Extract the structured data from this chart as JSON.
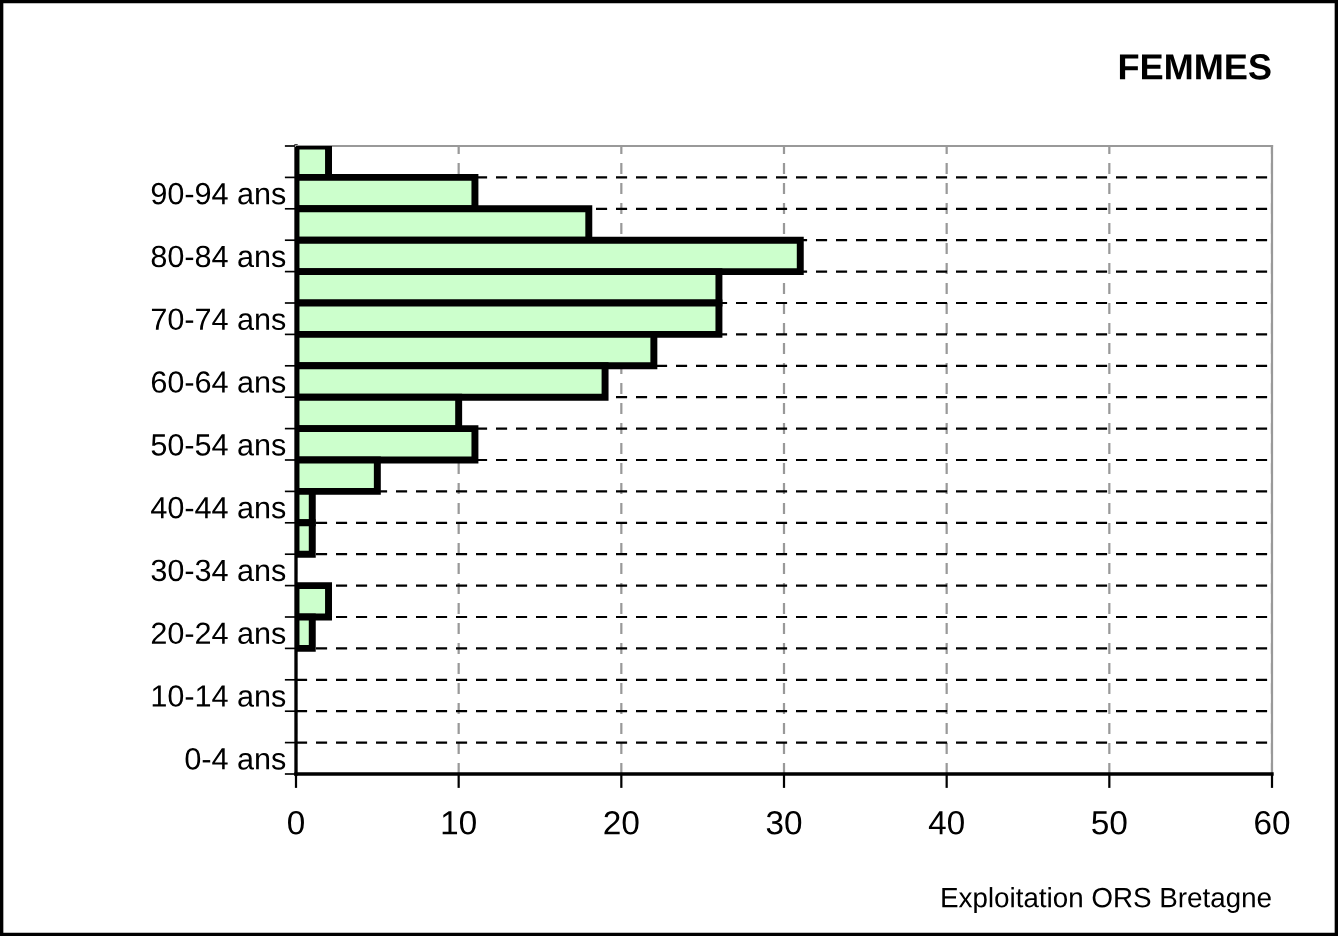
{
  "chart_data": {
    "type": "bar",
    "orientation": "horizontal",
    "subtitle": "FEMMES",
    "categories": [
      null,
      "90-94 ans",
      null,
      "80-84 ans",
      null,
      "70-74 ans",
      null,
      "60-64 ans",
      null,
      "50-54 ans",
      null,
      "40-44 ans",
      null,
      "30-34 ans",
      null,
      "20-24 ans",
      null,
      "10-14 ans",
      null,
      "0-4 ans"
    ],
    "values": [
      2,
      11,
      18,
      31,
      26,
      26,
      22,
      19,
      10,
      11,
      5,
      1,
      1,
      0,
      2,
      1,
      0,
      0,
      0,
      0
    ],
    "color": "#ccffcc",
    "xlim": [
      0,
      60
    ],
    "xticks": [
      0,
      10,
      20,
      30,
      40,
      50,
      60
    ],
    "grid": true,
    "annotations": [
      "Exploitation ORS Bretagne"
    ]
  }
}
